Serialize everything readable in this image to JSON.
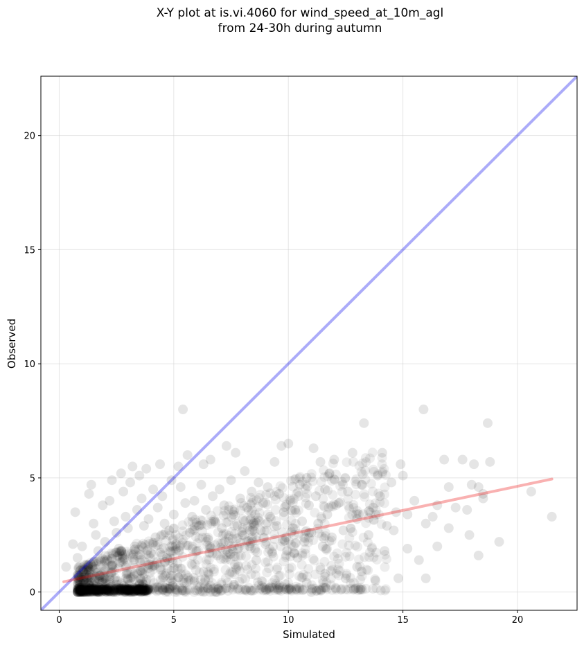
{
  "figure": {
    "title_line1": "X-Y plot at is.vi.4060 for wind_speed_at_10m_agl",
    "title_line2": "from 24-30h during autumn"
  },
  "chart_data": {
    "type": "scatter",
    "title": "X-Y plot at is.vi.4060 for wind_speed_at_10m_agl\nfrom 24-30h during autumn",
    "xlabel": "Simulated",
    "ylabel": "Observed",
    "xlim": [
      -0.8,
      22.6
    ],
    "ylim": [
      -0.8,
      22.6
    ],
    "xticks": [
      0,
      5,
      10,
      15,
      20
    ],
    "yticks": [
      0,
      5,
      10,
      15,
      20
    ],
    "grid": true,
    "point_color": "#000000",
    "point_alpha": 0.1,
    "points": [
      [
        0.3,
        1.1
      ],
      [
        0.6,
        2.1
      ],
      [
        0.7,
        3.5
      ],
      [
        0.8,
        1.5
      ],
      [
        1.0,
        2.0
      ],
      [
        1.2,
        1.2
      ],
      [
        1.3,
        4.3
      ],
      [
        1.4,
        4.7
      ],
      [
        1.5,
        3.0
      ],
      [
        1.6,
        2.5
      ],
      [
        1.7,
        1.8
      ],
      [
        1.9,
        3.8
      ],
      [
        2.0,
        2.2
      ],
      [
        2.1,
        1.4
      ],
      [
        2.2,
        4.0
      ],
      [
        2.3,
        4.9
      ],
      [
        2.4,
        3.1
      ],
      [
        2.5,
        2.6
      ],
      [
        2.6,
        1.9
      ],
      [
        2.7,
        5.2
      ],
      [
        2.8,
        4.4
      ],
      [
        2.9,
        3.3
      ],
      [
        3.0,
        2.8
      ],
      [
        3.1,
        4.8
      ],
      [
        3.2,
        5.5
      ],
      [
        3.3,
        2.0
      ],
      [
        3.4,
        3.6
      ],
      [
        3.5,
        5.1
      ],
      [
        3.6,
        4.1
      ],
      [
        3.7,
        2.9
      ],
      [
        3.8,
        5.4
      ],
      [
        3.9,
        3.2
      ],
      [
        4.0,
        1.7
      ],
      [
        4.1,
        4.5
      ],
      [
        4.2,
        2.4
      ],
      [
        4.3,
        3.7
      ],
      [
        4.4,
        5.6
      ],
      [
        4.5,
        4.2
      ],
      [
        4.6,
        3.0
      ],
      [
        4.7,
        1.5
      ],
      [
        4.8,
        2.7
      ],
      [
        4.9,
        4.9
      ],
      [
        5.0,
        3.4
      ],
      [
        5.1,
        2.1
      ],
      [
        5.2,
        5.5
      ],
      [
        5.3,
        4.6
      ],
      [
        5.4,
        8.0
      ],
      [
        5.5,
        3.9
      ],
      [
        5.6,
        6.0
      ],
      [
        5.7,
        2.6
      ],
      [
        5.8,
        3.3
      ],
      [
        5.9,
        4.0
      ],
      [
        6.0,
        1.8
      ],
      [
        6.1,
        2.9
      ],
      [
        6.2,
        4.7
      ],
      [
        6.3,
        5.6
      ],
      [
        6.4,
        3.6
      ],
      [
        6.5,
        2.3
      ],
      [
        6.6,
        5.8
      ],
      [
        6.7,
        4.2
      ],
      [
        6.8,
        3.1
      ],
      [
        6.9,
        1.6
      ],
      [
        7.0,
        4.5
      ],
      [
        7.1,
        2.8
      ],
      [
        7.2,
        3.8
      ],
      [
        7.3,
        6.4
      ],
      [
        7.4,
        2.2
      ],
      [
        7.5,
        4.9
      ],
      [
        7.6,
        3.4
      ],
      [
        7.7,
        6.1
      ],
      [
        7.8,
        1.9
      ],
      [
        7.9,
        4.1
      ],
      [
        8.0,
        2.5
      ],
      [
        8.1,
        5.3
      ],
      [
        8.2,
        3.7
      ],
      [
        8.3,
        2.0
      ],
      [
        8.4,
        4.4
      ],
      [
        8.5,
        3.0
      ],
      [
        8.6,
        1.4
      ],
      [
        8.7,
        4.8
      ],
      [
        8.8,
        2.7
      ],
      [
        8.9,
        3.9
      ],
      [
        9.0,
        2.1
      ],
      [
        9.1,
        4.6
      ],
      [
        9.2,
        3.3
      ],
      [
        9.3,
        1.7
      ],
      [
        9.4,
        5.7
      ],
      [
        9.5,
        2.9
      ],
      [
        9.6,
        4.3
      ],
      [
        9.7,
        6.4
      ],
      [
        9.8,
        3.5
      ],
      [
        9.9,
        2.4
      ],
      [
        10.0,
        6.5
      ],
      [
        10.1,
        4.0
      ],
      [
        10.2,
        2.8
      ],
      [
        10.3,
        3.6
      ],
      [
        10.4,
        1.5
      ],
      [
        10.5,
        4.7
      ],
      [
        10.6,
        3.1
      ],
      [
        10.7,
        2.2
      ],
      [
        10.8,
        5.0
      ],
      [
        10.9,
        3.8
      ],
      [
        11.0,
        2.6
      ],
      [
        11.1,
        6.3
      ],
      [
        11.2,
        4.2
      ],
      [
        11.3,
        3.0
      ],
      [
        11.4,
        5.7
      ],
      [
        11.5,
        2.0
      ],
      [
        11.6,
        4.5
      ],
      [
        11.7,
        3.4
      ],
      [
        11.8,
        5.2
      ],
      [
        11.9,
        2.4
      ],
      [
        12.0,
        5.8
      ],
      [
        12.2,
        3.9
      ],
      [
        12.4,
        2.7
      ],
      [
        12.6,
        4.4
      ],
      [
        12.8,
        6.1
      ],
      [
        13.0,
        3.2
      ],
      [
        13.2,
        4.7
      ],
      [
        13.3,
        7.4
      ],
      [
        13.5,
        2.5
      ],
      [
        13.7,
        3.7
      ],
      [
        13.9,
        5.1
      ],
      [
        14.0,
        4.2
      ],
      [
        14.1,
        6.1
      ],
      [
        14.3,
        2.9
      ],
      [
        14.5,
        4.8
      ],
      [
        14.7,
        3.5
      ],
      [
        14.9,
        5.6
      ],
      [
        15.0,
        5.1
      ],
      [
        15.2,
        3.4
      ],
      [
        15.5,
        4.0
      ],
      [
        15.7,
        1.4
      ],
      [
        15.9,
        8.0
      ],
      [
        16.0,
        3.0
      ],
      [
        16.3,
        3.3
      ],
      [
        16.5,
        2.0
      ],
      [
        16.8,
        5.8
      ],
      [
        17.0,
        4.6
      ],
      [
        17.3,
        3.7
      ],
      [
        17.6,
        5.8
      ],
      [
        17.9,
        2.5
      ],
      [
        18.1,
        5.6
      ],
      [
        18.3,
        1.6
      ],
      [
        18.5,
        4.3
      ],
      [
        18.7,
        7.4
      ],
      [
        18.8,
        5.7
      ],
      [
        19.2,
        2.2
      ],
      [
        20.6,
        4.4
      ],
      [
        21.5,
        3.3
      ],
      [
        13.8,
        0.5
      ],
      [
        12.5,
        0.6
      ],
      [
        14.8,
        0.6
      ],
      [
        16.0,
        0.6
      ],
      [
        13.0,
        1.1
      ],
      [
        14.2,
        1.8
      ],
      [
        11.6,
        0.8
      ],
      [
        12.3,
        0.1
      ],
      [
        14.6,
        2.7
      ],
      [
        15.2,
        1.9
      ],
      [
        16.5,
        3.8
      ],
      [
        17.0,
        2.8
      ],
      [
        17.8,
        3.6
      ],
      [
        18.0,
        4.7
      ],
      [
        18.3,
        4.6
      ],
      [
        18.5,
        4.1
      ],
      [
        13.2,
        0.9
      ],
      [
        10.8,
        0.4
      ],
      [
        11.0,
        0.0
      ],
      [
        9.6,
        0.3
      ]
    ],
    "series": [
      {
        "values_type": "identity_line",
        "x": [
          -0.8,
          22.6
        ],
        "y": [
          -0.8,
          22.6
        ],
        "color": "#0000ee"
      },
      {
        "values_type": "fit_line",
        "x": [
          0.2,
          21.5
        ],
        "y": [
          0.45,
          4.95
        ],
        "color": "#ee1111"
      }
    ]
  }
}
